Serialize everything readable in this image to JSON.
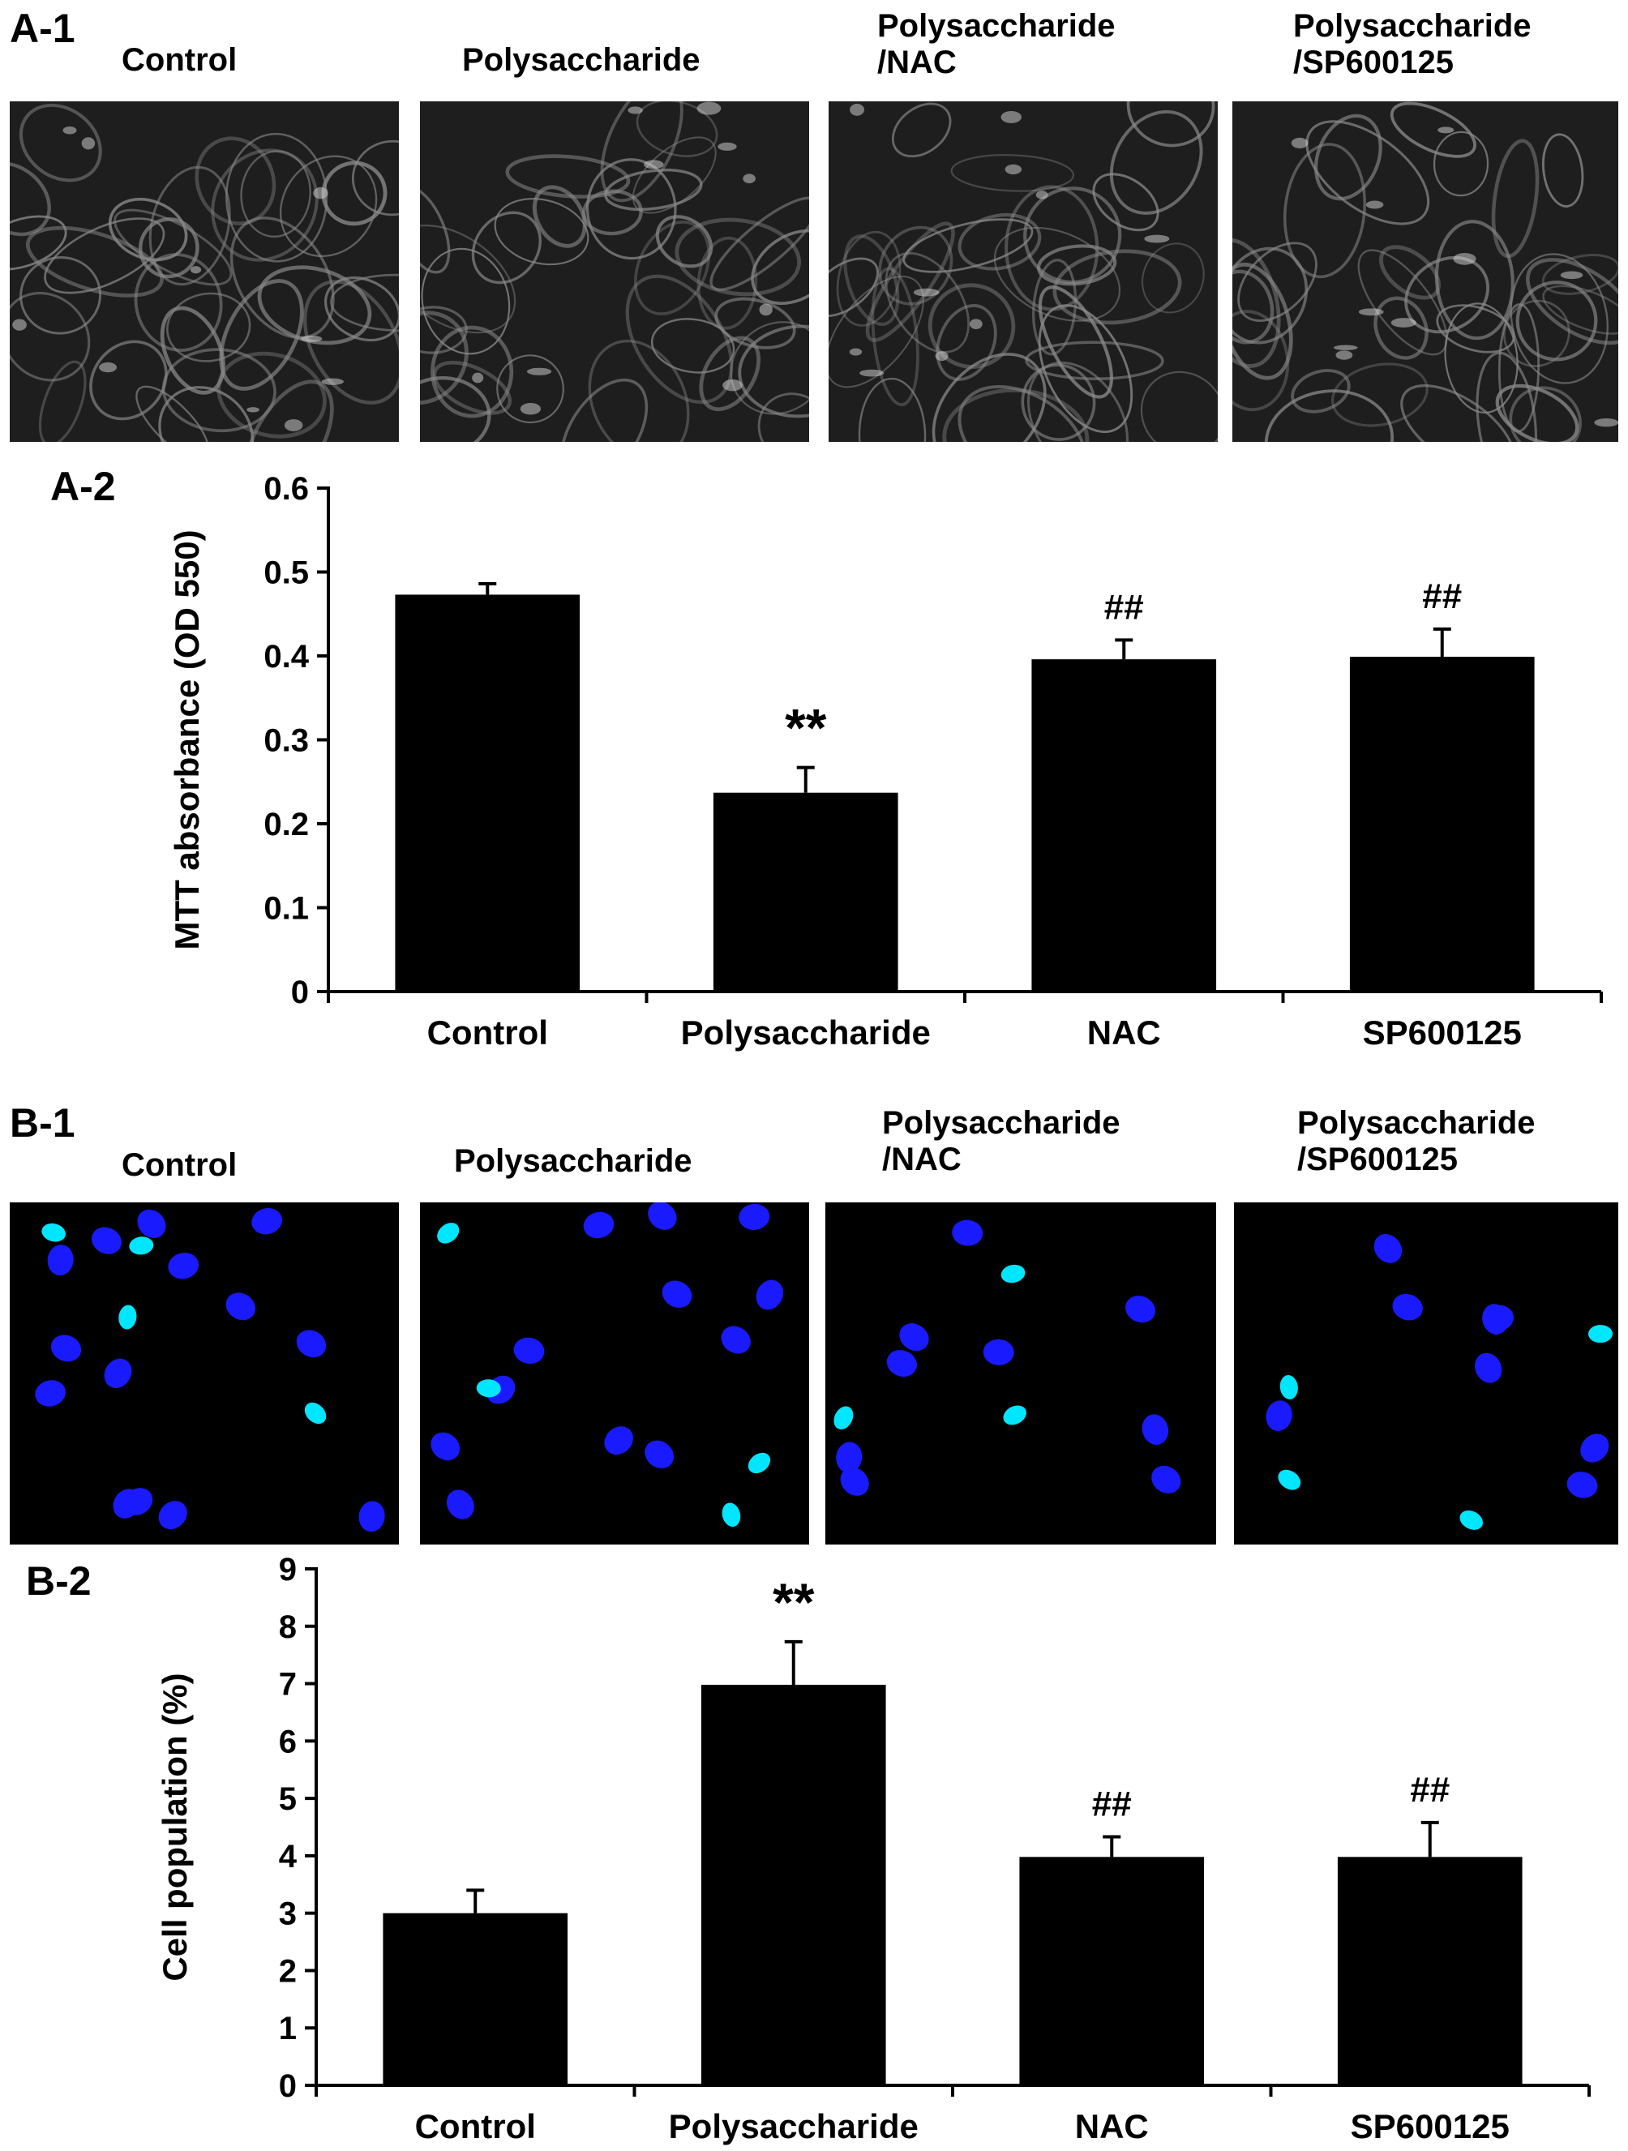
{
  "panels": {
    "a1": {
      "label": "A-1",
      "images": [
        {
          "title": "Control"
        },
        {
          "title": "Polysaccharide"
        },
        {
          "title": "Polysaccharide\n/NAC"
        },
        {
          "title": "Polysaccharide\n/SP600125"
        }
      ]
    },
    "a2": {
      "label": "A-2"
    },
    "b1": {
      "label": "B-1",
      "images": [
        {
          "title": "Control"
        },
        {
          "title": "Polysaccharide"
        },
        {
          "title": "Polysaccharide\n/NAC"
        },
        {
          "title": "Polysaccharide\n/SP600125"
        }
      ]
    },
    "b2": {
      "label": "B-2"
    }
  },
  "colors": {
    "bar": "#000000",
    "brightfield_bg": "#1e1e1e",
    "brightfield_cell": "#8a8a8a",
    "fluor_bg": "#000000",
    "nucleus": "#1a1aff",
    "nucleus_bright": "#00e6ff"
  },
  "chart_data": [
    {
      "type": "bar",
      "panel": "A-2",
      "categories": [
        "Control",
        "Polysaccharide",
        "NAC",
        "SP600125"
      ],
      "values": [
        0.473,
        0.237,
        0.396,
        0.399
      ],
      "errors": [
        0.013,
        0.03,
        0.023,
        0.033
      ],
      "annotations": [
        "",
        "**",
        "##",
        "##"
      ],
      "xlabel": "",
      "ylabel": "MTT absorbance (OD 550)",
      "ylim": [
        0,
        0.6
      ],
      "yticks": [
        0,
        0.1,
        0.2,
        0.3,
        0.4,
        0.5,
        0.6
      ],
      "ytick_labels": [
        "0",
        "0.1",
        "0.2",
        "0.3",
        "0.4",
        "0.5",
        "0.6"
      ],
      "grid": false,
      "legend": "none"
    },
    {
      "type": "bar",
      "panel": "B-2",
      "categories": [
        "Control",
        "Polysaccharide",
        "NAC",
        "SP600125"
      ],
      "values": [
        3.0,
        6.98,
        3.98,
        3.98
      ],
      "errors": [
        0.4,
        0.75,
        0.35,
        0.6
      ],
      "annotations": [
        "",
        "**",
        "##",
        "##"
      ],
      "xlabel": "",
      "ylabel": "Cell population (%)",
      "ylim": [
        0,
        9
      ],
      "yticks": [
        0,
        1,
        2,
        3,
        4,
        5,
        6,
        7,
        8,
        9
      ],
      "ytick_labels": [
        "0",
        "1",
        "2",
        "3",
        "4",
        "5",
        "6",
        "7",
        "8",
        "9"
      ],
      "grid": false,
      "legend": "none"
    }
  ]
}
